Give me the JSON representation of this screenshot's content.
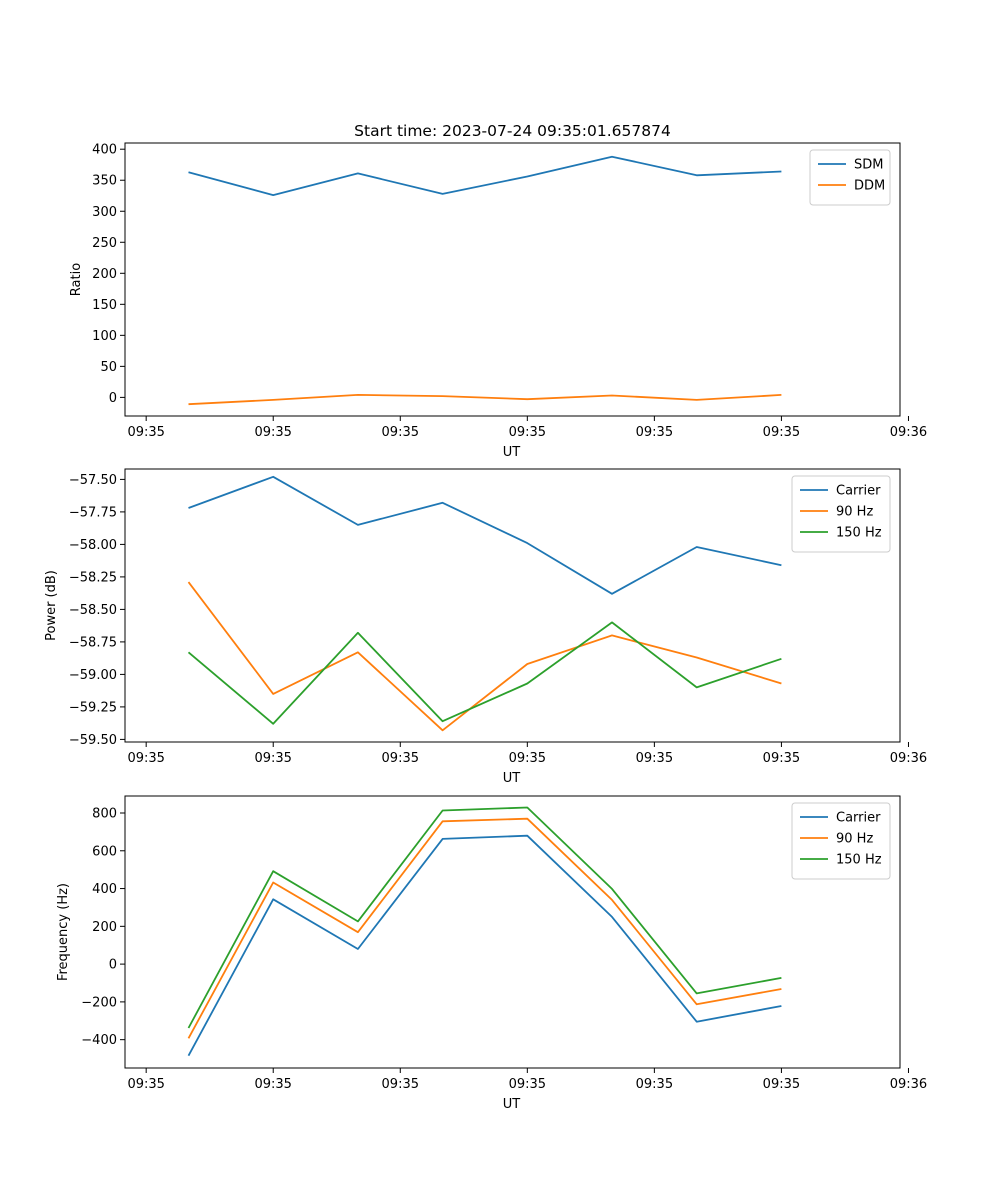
{
  "figure_title": "Start time: 2023-07-24 09:35:01.657874",
  "colors": {
    "blue": "#1f77b4",
    "orange": "#ff7f0e",
    "green": "#2ca02c"
  },
  "chart_data": [
    {
      "type": "line",
      "title": "Start time: 2023-07-24 09:35:01.657874",
      "xlabel": "UT",
      "ylabel": "Ratio",
      "x": [
        1,
        2,
        3,
        4,
        5,
        6,
        7,
        8
      ],
      "xlim": [
        0.25,
        9.4
      ],
      "xticks": [
        0.5,
        2.0,
        3.5,
        5.0,
        6.5,
        8.0,
        9.5
      ],
      "xtick_labels": [
        "09:35",
        "09:35",
        "09:35",
        "09:35",
        "09:35",
        "09:35",
        "09:36"
      ],
      "ylim": [
        -30,
        410
      ],
      "yticks": [
        0,
        50,
        100,
        150,
        200,
        250,
        300,
        350,
        400
      ],
      "ytick_labels": [
        "0",
        "50",
        "100",
        "150",
        "200",
        "250",
        "300",
        "350",
        "400"
      ],
      "legend_position": "top-right",
      "series": [
        {
          "name": "SDM",
          "color": "#1f77b4",
          "values": [
            363,
            326,
            361,
            328,
            356,
            388,
            358,
            364
          ]
        },
        {
          "name": "DDM",
          "color": "#ff7f0e",
          "values": [
            -11,
            -4,
            4,
            2,
            -3,
            3,
            -4,
            4
          ]
        }
      ]
    },
    {
      "type": "line",
      "title": "",
      "xlabel": "UT",
      "ylabel": "Power (dB)",
      "x": [
        1,
        2,
        3,
        4,
        5,
        6,
        7,
        8
      ],
      "xlim": [
        0.25,
        9.4
      ],
      "xticks": [
        0.5,
        2.0,
        3.5,
        5.0,
        6.5,
        8.0,
        9.5
      ],
      "xtick_labels": [
        "09:35",
        "09:35",
        "09:35",
        "09:35",
        "09:35",
        "09:35",
        "09:36"
      ],
      "ylim": [
        -59.52,
        -57.42
      ],
      "yticks": [
        -57.5,
        -57.75,
        -58.0,
        -58.25,
        -58.5,
        -58.75,
        -59.0,
        -59.25,
        -59.5
      ],
      "ytick_labels": [
        "−57.50",
        "−57.75",
        "−58.00",
        "−58.25",
        "−58.50",
        "−58.75",
        "−59.00",
        "−59.25",
        "−59.50"
      ],
      "legend_position": "top-right",
      "series": [
        {
          "name": "Carrier",
          "color": "#1f77b4",
          "values": [
            -57.72,
            -57.48,
            -57.85,
            -57.68,
            -57.99,
            -58.38,
            -58.02,
            -58.16
          ]
        },
        {
          "name": "90 Hz",
          "color": "#ff7f0e",
          "values": [
            -58.29,
            -59.15,
            -58.83,
            -59.43,
            -58.92,
            -58.7,
            -58.87,
            -59.07
          ]
        },
        {
          "name": "150 Hz",
          "color": "#2ca02c",
          "values": [
            -58.83,
            -59.38,
            -58.68,
            -59.36,
            -59.07,
            -58.6,
            -59.1,
            -58.88
          ]
        }
      ]
    },
    {
      "type": "line",
      "title": "",
      "xlabel": "UT",
      "ylabel": "Frequency (Hz)",
      "x": [
        1,
        2,
        3,
        4,
        5,
        6,
        7,
        8
      ],
      "xlim": [
        0.25,
        9.4
      ],
      "xticks": [
        0.5,
        2.0,
        3.5,
        5.0,
        6.5,
        8.0,
        9.5
      ],
      "xtick_labels": [
        "09:35",
        "09:35",
        "09:35",
        "09:35",
        "09:35",
        "09:35",
        "09:36"
      ],
      "ylim": [
        -550,
        890
      ],
      "yticks": [
        -400,
        -200,
        0,
        200,
        400,
        600,
        800
      ],
      "ytick_labels": [
        "−400",
        "−200",
        "0",
        "200",
        "400",
        "600",
        "800"
      ],
      "legend_position": "top-right",
      "series": [
        {
          "name": "Carrier",
          "color": "#1f77b4",
          "values": [
            -485,
            343,
            80,
            663,
            680,
            250,
            -305,
            -222
          ]
        },
        {
          "name": "90 Hz",
          "color": "#ff7f0e",
          "values": [
            -393,
            432,
            169,
            756,
            770,
            340,
            -213,
            -132
          ]
        },
        {
          "name": "150 Hz",
          "color": "#2ca02c",
          "values": [
            -338,
            492,
            226,
            813,
            829,
            398,
            -155,
            -73
          ]
        }
      ]
    }
  ]
}
